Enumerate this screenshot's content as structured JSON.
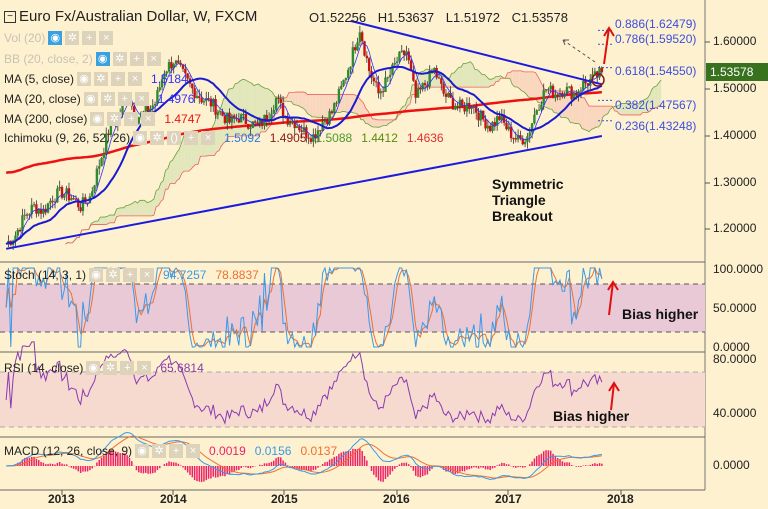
{
  "header": {
    "title": "Euro Fx/Australian Dollar, W, FXCM",
    "open": "O1.52256",
    "high": "H1.53637",
    "low": "L1.51972",
    "close": "C1.53578"
  },
  "legend": {
    "vol": "Vol (20)",
    "bb": "BB (20, close, 2)",
    "ma5": {
      "label": "MA (5, close)",
      "value": "1.5184"
    },
    "ma20": {
      "label": "MA (20, close)",
      "value": "1.4976"
    },
    "ma200": {
      "label": "MA (200, close)",
      "value": "1.4747"
    },
    "ichimoku": {
      "label": "Ichimoku (9, 26, 52, 26)",
      "values": [
        "1.5092",
        "1.4905",
        "1.5088",
        "1.4412",
        "1.4636"
      ]
    }
  },
  "fib_levels": [
    {
      "label": "0.886(1.62479)",
      "value": 1.62479
    },
    {
      "label": "0.786(1.59520)",
      "value": 1.5952
    },
    {
      "label": "0.618(1.54550)",
      "value": 1.5455
    },
    {
      "label": "0.382(1.47567)",
      "value": 1.47567
    },
    {
      "label": "0.236(1.43248)",
      "value": 1.43248
    }
  ],
  "annotations": {
    "pattern": [
      "Symmetric",
      "Triangle",
      "Breakout"
    ],
    "stoch_note": "Bias higher",
    "rsi_note": "Bias higher"
  },
  "price_axis": {
    "ticks": [
      "1.60000",
      "1.50000",
      "1.40000",
      "1.30000",
      "1.20000"
    ],
    "last_price": "1.53578"
  },
  "stoch": {
    "label": "Stoch (14, 3, 1)",
    "k": "94.7257",
    "d": "78.8837",
    "ticks": [
      "100.0000",
      "50.0000",
      "0.0000"
    ]
  },
  "rsi": {
    "label": "RSI (14, close)",
    "value": "65.6814",
    "ticks": [
      "80.0000",
      "40.0000"
    ]
  },
  "macd": {
    "label": "MACD (12, 26, close, 9)",
    "hist": "0.0019",
    "macd": "0.0156",
    "signal": "0.0137",
    "ticks": [
      "0.0000"
    ]
  },
  "time_axis": [
    "2013",
    "2014",
    "2015",
    "2016",
    "2017",
    "2018"
  ],
  "colors": {
    "background": "#fdf1cf",
    "ma5": "#3030ff",
    "ma20": "#1a1ad0",
    "ma200": "#ee1111",
    "trendline": "#1a1ae0",
    "up": "#2e8b2e",
    "down": "#cc1111",
    "stoch_k": "#3a9ae8",
    "stoch_d": "#f07030",
    "rsi": "#8a3ab0",
    "macd_hist": "#ee2266",
    "last_price": "#38721f"
  },
  "chart_data": {
    "type": "candlestick",
    "symbol": "EURAUD",
    "interval": "W",
    "ylim": [
      1.15,
      1.66
    ],
    "x": [
      "2012-07",
      "2012-08",
      "2012-09",
      "2012-10",
      "2012-11",
      "2012-12",
      "2013-01",
      "2013-02",
      "2013-03",
      "2013-04",
      "2013-05",
      "2013-06",
      "2013-07",
      "2013-08",
      "2013-09",
      "2013-10",
      "2013-11",
      "2013-12",
      "2014-01",
      "2014-02",
      "2014-03",
      "2014-04",
      "2014-05",
      "2014-06",
      "2014-07",
      "2014-08",
      "2014-09",
      "2014-10",
      "2014-11",
      "2014-12",
      "2015-01",
      "2015-02",
      "2015-03",
      "2015-04",
      "2015-05",
      "2015-06",
      "2015-07",
      "2015-08",
      "2015-09",
      "2015-10",
      "2015-11",
      "2015-12",
      "2016-01",
      "2016-02",
      "2016-03",
      "2016-04",
      "2016-05",
      "2016-06",
      "2016-07",
      "2016-08",
      "2016-09",
      "2016-10",
      "2016-11",
      "2016-12",
      "2017-01",
      "2017-02",
      "2017-03",
      "2017-04",
      "2017-05",
      "2017-06",
      "2017-07",
      "2017-08",
      "2017-09",
      "2017-10",
      "2017-11"
    ],
    "close": [
      1.17,
      1.19,
      1.23,
      1.25,
      1.24,
      1.27,
      1.28,
      1.27,
      1.25,
      1.27,
      1.34,
      1.41,
      1.44,
      1.49,
      1.44,
      1.45,
      1.47,
      1.54,
      1.56,
      1.53,
      1.5,
      1.48,
      1.47,
      1.45,
      1.43,
      1.44,
      1.43,
      1.42,
      1.44,
      1.48,
      1.44,
      1.43,
      1.41,
      1.4,
      1.43,
      1.45,
      1.5,
      1.56,
      1.63,
      1.54,
      1.49,
      1.52,
      1.56,
      1.58,
      1.48,
      1.51,
      1.54,
      1.49,
      1.47,
      1.46,
      1.47,
      1.44,
      1.42,
      1.44,
      1.41,
      1.39,
      1.4,
      1.46,
      1.5,
      1.49,
      1.5,
      1.49,
      1.51,
      1.52,
      1.536
    ],
    "triangle": {
      "upper": [
        [
          "2015-08",
          1.645
        ],
        [
          "2017-11",
          1.51
        ]
      ],
      "lower": [
        [
          "2012-07",
          1.16
        ],
        [
          "2017-11",
          1.4
        ]
      ]
    }
  }
}
